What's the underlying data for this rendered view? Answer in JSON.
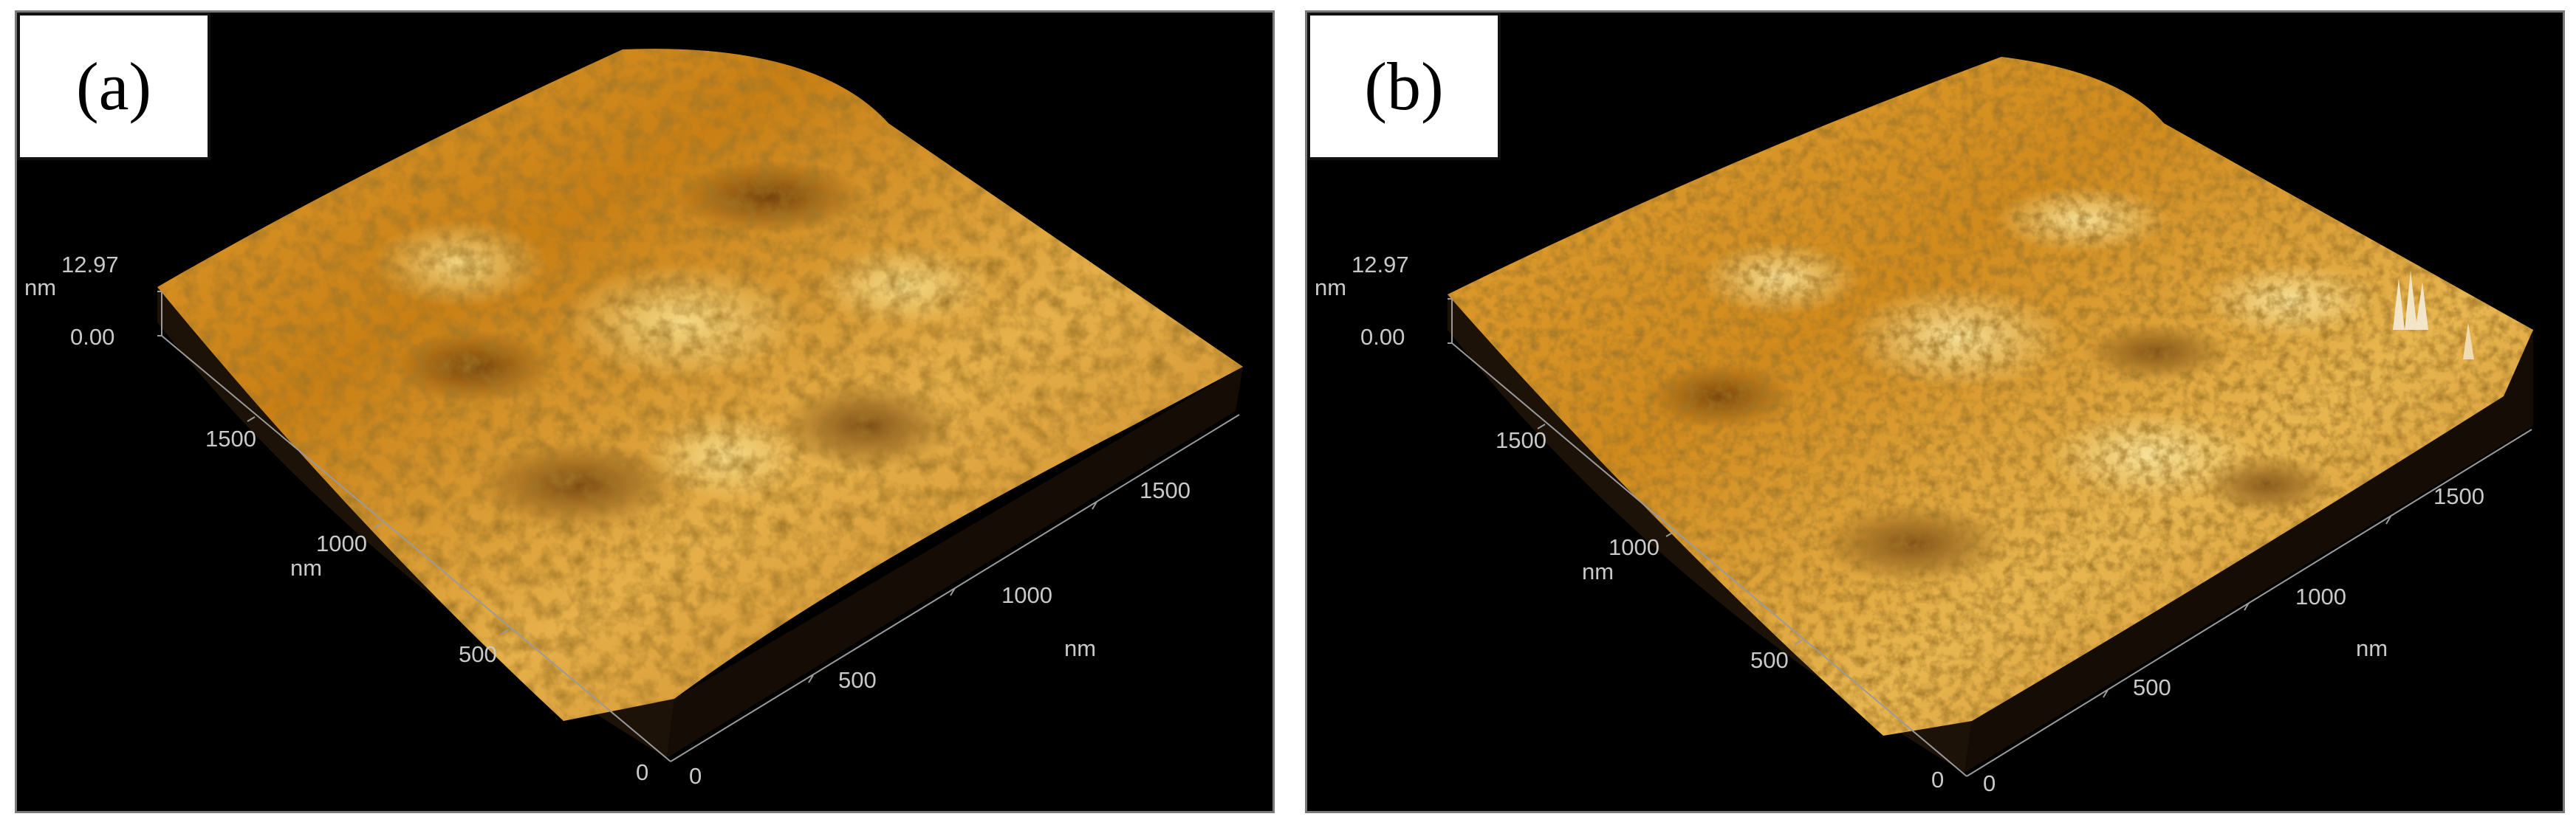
{
  "panels": [
    {
      "label": "(a)",
      "z_axis": {
        "max": "12.97",
        "min": "0.00",
        "unit": "nm"
      },
      "left_axis": {
        "ticks": [
          "1500",
          "1000",
          "500",
          "0"
        ],
        "unit": "nm"
      },
      "right_axis": {
        "ticks": [
          "0",
          "500",
          "1000",
          "1500"
        ],
        "unit": "nm"
      },
      "color": "#d8901e"
    },
    {
      "label": "(b)",
      "z_axis": {
        "max": "12.97",
        "min": "0.00",
        "unit": "nm"
      },
      "left_axis": {
        "ticks": [
          "1500",
          "1000",
          "500",
          "0"
        ],
        "unit": "nm"
      },
      "right_axis": {
        "ticks": [
          "0",
          "500",
          "1000",
          "1500"
        ],
        "unit": "nm"
      },
      "color": "#dc9422"
    }
  ]
}
